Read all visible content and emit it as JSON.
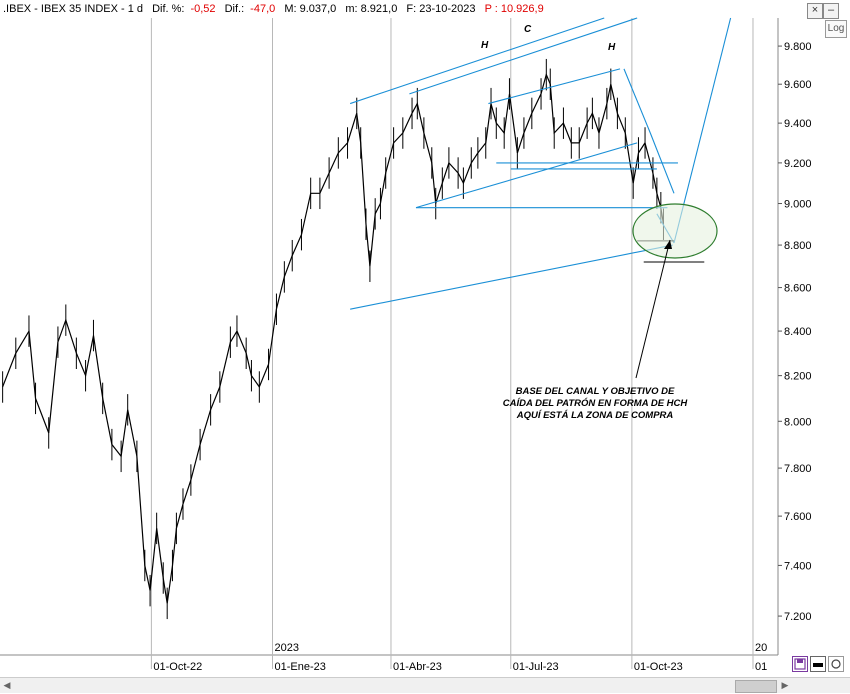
{
  "header": {
    "symbol": ".IBEX - IBEX 35 INDEX - 1 d",
    "dif_pct_label": "Dif. %:",
    "dif_pct_value": "-0,52",
    "dif_label": "Dif.:",
    "dif_value": "-47,0",
    "max_label": "M: 9.037,0",
    "min_label": "m: 8.921,0",
    "date_label": "F: 23-10-2023",
    "p_label": "P : 10.926,9"
  },
  "controls": {
    "close": "×",
    "minimize": "–",
    "log": "Log"
  },
  "annotations": {
    "h_left": "H",
    "c_center": "C",
    "h_right": "H",
    "note_line1": "BASE DEL CANAL Y OBJETIVO DE",
    "note_line2": "CAÍDA DEL PATRÓN EN FORMA DE HCH",
    "note_line3": "AQUÍ ESTÁ LA ZONA DE COMPRA"
  },
  "colors": {
    "price": "#000000",
    "trendline": "#1a8fd6",
    "ellipse_fill": "#e3f0dc",
    "ellipse_stroke": "#3a8a3a",
    "grid": "#b8b8b8",
    "negative": "#e00000"
  },
  "chart_data": {
    "type": "line",
    "title": ".IBEX - IBEX 35 INDEX - 1 d",
    "scale": "log",
    "ylim": [
      7050,
      9950
    ],
    "y_ticks": [
      7200,
      7400,
      7600,
      7800,
      8000,
      8200,
      8400,
      8600,
      8800,
      9000,
      9200,
      9400,
      9600,
      9800
    ],
    "y_tick_labels": [
      "7.200",
      "7.400",
      "7.600",
      "7.800",
      "8.000",
      "8.200",
      "8.400",
      "8.600",
      "8.800",
      "9.000",
      "9.200",
      "9.400",
      "9.600",
      "9.800"
    ],
    "x_tick_labels": [
      "01-Oct-22",
      "01-Ene-23",
      "01-Abr-23",
      "01-Jul-23",
      "01-Oct-23",
      "01"
    ],
    "x_tick_dates": [
      "2022-10-01",
      "2023-01-01",
      "2023-04-01",
      "2023-07-01",
      "2023-10-01",
      "2024-01-01"
    ],
    "year_labels": [
      {
        "label": "2023",
        "date": "2023-01-01"
      },
      {
        "label": "20",
        "date": "2024-01-01"
      }
    ],
    "grid": true,
    "series": [
      {
        "values": [
          [
            "2022-06-10",
            8150
          ],
          [
            "2022-06-20",
            8300
          ],
          [
            "2022-06-30",
            8400
          ],
          [
            "2022-07-05",
            8100
          ],
          [
            "2022-07-15",
            7950
          ],
          [
            "2022-07-22",
            8350
          ],
          [
            "2022-07-28",
            8450
          ],
          [
            "2022-08-05",
            8300
          ],
          [
            "2022-08-12",
            8200
          ],
          [
            "2022-08-18",
            8380
          ],
          [
            "2022-08-25",
            8100
          ],
          [
            "2022-09-01",
            7900
          ],
          [
            "2022-09-08",
            7850
          ],
          [
            "2022-09-13",
            8050
          ],
          [
            "2022-09-20",
            7850
          ],
          [
            "2022-09-26",
            7400
          ],
          [
            "2022-09-30",
            7300
          ],
          [
            "2022-10-05",
            7550
          ],
          [
            "2022-10-10",
            7350
          ],
          [
            "2022-10-13",
            7250
          ],
          [
            "2022-10-17",
            7400
          ],
          [
            "2022-10-20",
            7550
          ],
          [
            "2022-10-25",
            7650
          ],
          [
            "2022-10-31",
            7750
          ],
          [
            "2022-11-07",
            7900
          ],
          [
            "2022-11-15",
            8050
          ],
          [
            "2022-11-22",
            8150
          ],
          [
            "2022-11-30",
            8350
          ],
          [
            "2022-12-05",
            8400
          ],
          [
            "2022-12-12",
            8300
          ],
          [
            "2022-12-16",
            8200
          ],
          [
            "2022-12-22",
            8150
          ],
          [
            "2022-12-29",
            8250
          ],
          [
            "2023-01-04",
            8500
          ],
          [
            "2023-01-10",
            8650
          ],
          [
            "2023-01-16",
            8750
          ],
          [
            "2023-01-23",
            8850
          ],
          [
            "2023-01-30",
            9050
          ],
          [
            "2023-02-06",
            9050
          ],
          [
            "2023-02-13",
            9150
          ],
          [
            "2023-02-20",
            9250
          ],
          [
            "2023-02-27",
            9300
          ],
          [
            "2023-03-06",
            9450
          ],
          [
            "2023-03-09",
            9300
          ],
          [
            "2023-03-13",
            8900
          ],
          [
            "2023-03-16",
            8700
          ],
          [
            "2023-03-20",
            8950
          ],
          [
            "2023-03-24",
            9000
          ],
          [
            "2023-03-28",
            9150
          ],
          [
            "2023-04-03",
            9300
          ],
          [
            "2023-04-10",
            9350
          ],
          [
            "2023-04-17",
            9450
          ],
          [
            "2023-04-21",
            9500
          ],
          [
            "2023-04-26",
            9350
          ],
          [
            "2023-05-02",
            9200
          ],
          [
            "2023-05-05",
            9000
          ],
          [
            "2023-05-10",
            9100
          ],
          [
            "2023-05-15",
            9200
          ],
          [
            "2023-05-22",
            9150
          ],
          [
            "2023-05-26",
            9100
          ],
          [
            "2023-06-01",
            9200
          ],
          [
            "2023-06-06",
            9250
          ],
          [
            "2023-06-12",
            9300
          ],
          [
            "2023-06-16",
            9500
          ],
          [
            "2023-06-20",
            9400
          ],
          [
            "2023-06-26",
            9350
          ],
          [
            "2023-06-30",
            9550
          ],
          [
            "2023-07-06",
            9250
          ],
          [
            "2023-07-11",
            9350
          ],
          [
            "2023-07-17",
            9450
          ],
          [
            "2023-07-24",
            9550
          ],
          [
            "2023-07-28",
            9650
          ],
          [
            "2023-07-31",
            9600
          ],
          [
            "2023-08-03",
            9350
          ],
          [
            "2023-08-10",
            9400
          ],
          [
            "2023-08-16",
            9300
          ],
          [
            "2023-08-22",
            9300
          ],
          [
            "2023-08-28",
            9400
          ],
          [
            "2023-09-01",
            9450
          ],
          [
            "2023-09-06",
            9350
          ],
          [
            "2023-09-12",
            9500
          ],
          [
            "2023-09-15",
            9600
          ],
          [
            "2023-09-20",
            9450
          ],
          [
            "2023-09-26",
            9350
          ],
          [
            "2023-10-02",
            9100
          ],
          [
            "2023-10-06",
            9250
          ],
          [
            "2023-10-11",
            9300
          ],
          [
            "2023-10-17",
            9150
          ],
          [
            "2023-10-20",
            9050
          ],
          [
            "2023-10-23",
            8980
          ],
          [
            "2023-10-25",
            8900
          ]
        ]
      }
    ],
    "trendlines": [
      {
        "from": [
          "2023-03-01",
          8500
        ],
        "to": [
          "2023-11-01",
          8800
        ]
      },
      {
        "from": [
          "2023-03-01",
          9500
        ],
        "to": [
          "2023-09-10",
          9950
        ]
      },
      {
        "from": [
          "2023-04-15",
          9550
        ],
        "to": [
          "2023-10-05",
          9950
        ]
      },
      {
        "from": [
          "2023-04-20",
          8980
        ],
        "to": [
          "2023-10-05",
          9300
        ]
      },
      {
        "from": [
          "2023-06-14",
          9500
        ],
        "to": [
          "2023-09-22",
          9680
        ]
      },
      {
        "from": [
          "2023-04-20",
          8980
        ],
        "to": [
          "2023-10-28",
          8980
        ]
      },
      {
        "from": [
          "2023-06-20",
          9200
        ],
        "to": [
          "2023-11-05",
          9200
        ]
      },
      {
        "from": [
          "2023-07-01",
          9170
        ],
        "to": [
          "2023-10-20",
          9170
        ]
      },
      {
        "from": [
          "2023-09-25",
          9680
        ],
        "to": [
          "2023-10-15",
          9350
        ]
      },
      {
        "from": [
          "2023-10-15",
          9350
        ],
        "to": [
          "2023-11-02",
          9050
        ]
      },
      {
        "from": [
          "2023-10-20",
          8950
        ],
        "to": [
          "2023-11-02",
          8810
        ]
      },
      {
        "from": [
          "2023-11-02",
          8810
        ],
        "to": [
          "2023-12-15",
          9950
        ]
      }
    ],
    "black_levels": [
      {
        "from": [
          "2023-10-05",
          8820
        ],
        "to": [
          "2023-11-02",
          8820
        ]
      },
      {
        "from": [
          "2023-10-10",
          8720
        ],
        "to": [
          "2023-11-25",
          8720
        ]
      }
    ]
  }
}
